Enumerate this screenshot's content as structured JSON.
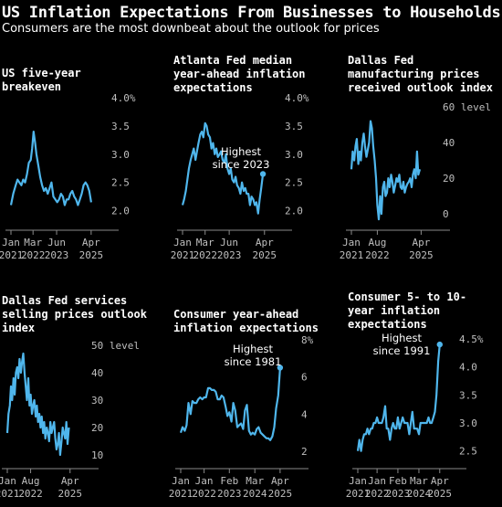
{
  "header": {
    "title": "US Inflation Expectations From Businesses to Households",
    "subtitle": "Consumers are the most downbeat about the outlook for prices"
  },
  "colors": {
    "line": "#4fb6ec",
    "background": "#000000",
    "axis": "#8a8a8a",
    "text": "#ffffff"
  },
  "chart_data": [
    {
      "type": "line",
      "title_lines": [
        "US five-year",
        "breakeven"
      ],
      "unit": "%",
      "ylim": [
        1.8,
        4.0
      ],
      "yticks": [
        2.0,
        2.5,
        3.0,
        3.5,
        4.0
      ],
      "ytick_labels": [
        "2.0",
        "2.5",
        "3.0",
        "3.5",
        "4.0%"
      ],
      "xlim": [
        2021.0,
        2025.45
      ],
      "xticks": [
        {
          "x": 2021.0,
          "month": "Jan",
          "year": "2021"
        },
        {
          "x": 2022.17,
          "month": "Mar",
          "year": "2022"
        },
        {
          "x": 2023.42,
          "month": "Jun",
          "year": "2023"
        },
        {
          "x": 2025.25,
          "month": "Apr",
          "year": "2025"
        }
      ],
      "series": [
        {
          "x": [
            2021.0,
            2021.12,
            2021.25,
            2021.35,
            2021.45,
            2021.55,
            2021.65,
            2021.75,
            2021.85,
            2021.95,
            2022.05,
            2022.12,
            2022.2,
            2022.28,
            2022.35,
            2022.45,
            2022.55,
            2022.65,
            2022.75,
            2022.85,
            2022.95,
            2023.05,
            2023.15,
            2023.25,
            2023.35,
            2023.45,
            2023.55,
            2023.65,
            2023.75,
            2023.85,
            2023.95,
            2024.05,
            2024.15,
            2024.25,
            2024.35,
            2024.45,
            2024.55,
            2024.65,
            2024.75,
            2024.85,
            2024.95,
            2025.05,
            2025.15,
            2025.25
          ],
          "y": [
            2.1,
            2.3,
            2.45,
            2.55,
            2.5,
            2.45,
            2.55,
            2.5,
            2.65,
            2.85,
            2.9,
            3.1,
            3.4,
            3.2,
            3.0,
            2.8,
            2.6,
            2.45,
            2.35,
            2.4,
            2.3,
            2.4,
            2.5,
            2.25,
            2.2,
            2.15,
            2.2,
            2.3,
            2.25,
            2.1,
            2.2,
            2.2,
            2.3,
            2.35,
            2.25,
            2.2,
            2.1,
            2.2,
            2.3,
            2.45,
            2.5,
            2.45,
            2.35,
            2.15
          ]
        }
      ]
    },
    {
      "type": "line",
      "title_lines": [
        "Atlanta Fed median",
        "year-ahead inflation",
        "expectations"
      ],
      "unit": "%",
      "ylim": [
        1.8,
        4.0
      ],
      "yticks": [
        2.0,
        2.5,
        3.0,
        3.5,
        4.0
      ],
      "ytick_labels": [
        "2.0",
        "2.5",
        "3.0",
        "3.5",
        "4.0%"
      ],
      "xlim": [
        2021.0,
        2025.45
      ],
      "xticks": [
        {
          "x": 2021.0,
          "month": "Jan",
          "year": "2021"
        },
        {
          "x": 2022.17,
          "month": "Mar",
          "year": "2022"
        },
        {
          "x": 2023.42,
          "month": "Jun",
          "year": "2023"
        },
        {
          "x": 2025.25,
          "month": "Apr",
          "year": "2025"
        }
      ],
      "annotation": {
        "lines": [
          "Highest",
          "since 2023"
        ]
      },
      "series": [
        {
          "x": [
            2021.0,
            2021.08,
            2021.17,
            2021.25,
            2021.33,
            2021.42,
            2021.5,
            2021.58,
            2021.67,
            2021.75,
            2021.83,
            2021.92,
            2022.0,
            2022.08,
            2022.17,
            2022.25,
            2022.33,
            2022.42,
            2022.5,
            2022.58,
            2022.67,
            2022.75,
            2022.83,
            2022.92,
            2023.0,
            2023.08,
            2023.17,
            2023.25,
            2023.33,
            2023.42,
            2023.5,
            2023.58,
            2023.67,
            2023.75,
            2023.83,
            2023.92,
            2024.0,
            2024.08,
            2024.17,
            2024.25,
            2024.33,
            2024.42,
            2024.5,
            2024.58,
            2024.67,
            2024.75,
            2024.83,
            2024.92,
            2025.0,
            2025.08,
            2025.17
          ],
          "y": [
            2.1,
            2.2,
            2.35,
            2.55,
            2.75,
            2.9,
            3.0,
            3.1,
            2.9,
            3.05,
            3.2,
            3.35,
            3.4,
            3.3,
            3.55,
            3.5,
            3.35,
            3.3,
            3.1,
            3.2,
            3.0,
            3.1,
            2.95,
            3.0,
            3.05,
            2.9,
            2.85,
            3.0,
            2.75,
            2.65,
            2.75,
            2.55,
            2.5,
            2.6,
            2.45,
            2.4,
            2.3,
            2.5,
            2.35,
            2.4,
            2.3,
            2.3,
            2.1,
            2.25,
            2.2,
            2.1,
            2.15,
            1.95,
            2.2,
            2.4,
            2.65
          ]
        }
      ]
    },
    {
      "type": "line",
      "title_lines": [
        "Dallas Fed",
        "manufacturing prices",
        "received outlook index"
      ],
      "unit": "level",
      "ylim": [
        -5,
        62
      ],
      "yticks": [
        0,
        20,
        40,
        60
      ],
      "ytick_labels": [
        "0",
        "20",
        "40",
        "60 level"
      ],
      "xlim": [
        2021.0,
        2025.45
      ],
      "xticks": [
        {
          "x": 2021.0,
          "month": "Jan",
          "year": "2021"
        },
        {
          "x": 2022.58,
          "month": "Aug",
          "year": "2022"
        },
        {
          "x": 2025.25,
          "month": "Apr",
          "year": "2025"
        }
      ],
      "series": [
        {
          "x": [
            2021.0,
            2021.08,
            2021.17,
            2021.25,
            2021.33,
            2021.42,
            2021.5,
            2021.58,
            2021.67,
            2021.75,
            2021.83,
            2021.92,
            2022.0,
            2022.08,
            2022.17,
            2022.25,
            2022.33,
            2022.42,
            2022.5,
            2022.58,
            2022.67,
            2022.75,
            2022.83,
            2022.92,
            2023.0,
            2023.08,
            2023.17,
            2023.25,
            2023.33,
            2023.42,
            2023.5,
            2023.58,
            2023.67,
            2023.75,
            2023.83,
            2023.92,
            2024.0,
            2024.08,
            2024.17,
            2024.25,
            2024.33,
            2024.42,
            2024.5,
            2024.58,
            2024.67,
            2024.75,
            2024.83,
            2024.92,
            2025.0,
            2025.08,
            2025.17
          ],
          "y": [
            25,
            35,
            30,
            38,
            42,
            28,
            35,
            30,
            40,
            45,
            38,
            32,
            36,
            40,
            52,
            48,
            38,
            30,
            20,
            5,
            -3,
            10,
            0,
            15,
            18,
            10,
            12,
            20,
            15,
            22,
            18,
            12,
            16,
            20,
            18,
            22,
            15,
            14,
            18,
            12,
            15,
            17,
            18,
            20,
            15,
            22,
            25,
            20,
            35,
            22,
            25
          ]
        }
      ]
    },
    {
      "type": "line",
      "title_lines": [
        "Dallas Fed services",
        "selling prices outlook",
        "index"
      ],
      "unit": "level",
      "ylim": [
        7,
        51
      ],
      "yticks": [
        10,
        20,
        30,
        40,
        50
      ],
      "ytick_labels": [
        "10",
        "20",
        "30",
        "40",
        "50 level"
      ],
      "xlim": [
        2021.0,
        2025.45
      ],
      "xticks": [
        {
          "x": 2021.0,
          "month": "Jan",
          "year": "2021"
        },
        {
          "x": 2022.58,
          "month": "Aug",
          "year": "2022"
        },
        {
          "x": 2025.25,
          "month": "Apr",
          "year": "2025"
        }
      ],
      "series": [
        {
          "x": [
            2021.0,
            2021.08,
            2021.17,
            2021.25,
            2021.33,
            2021.42,
            2021.5,
            2021.58,
            2021.67,
            2021.75,
            2021.83,
            2021.92,
            2022.0,
            2022.08,
            2022.17,
            2022.25,
            2022.33,
            2022.42,
            2022.5,
            2022.58,
            2022.67,
            2022.75,
            2022.83,
            2022.92,
            2023.0,
            2023.08,
            2023.17,
            2023.25,
            2023.33,
            2023.42,
            2023.5,
            2023.58,
            2023.67,
            2023.75,
            2023.83,
            2023.92,
            2024.0,
            2024.08,
            2024.17,
            2024.25,
            2024.33,
            2024.42,
            2024.5,
            2024.58,
            2024.67,
            2024.75,
            2024.83,
            2024.92,
            2025.0,
            2025.08,
            2025.17
          ],
          "y": [
            18,
            25,
            28,
            35,
            30,
            38,
            32,
            40,
            42,
            38,
            45,
            40,
            44,
            47,
            40,
            35,
            30,
            38,
            28,
            32,
            25,
            28,
            30,
            24,
            28,
            22,
            25,
            20,
            24,
            18,
            22,
            16,
            20,
            18,
            15,
            22,
            18,
            20,
            22,
            16,
            12,
            14,
            18,
            10,
            15,
            20,
            18,
            16,
            22,
            14,
            20
          ]
        }
      ]
    },
    {
      "type": "line",
      "title_lines": [
        "Consumer year-ahead",
        "inflation expectations"
      ],
      "unit": "%",
      "ylim": [
        2.0,
        8.0
      ],
      "yticks": [
        2,
        4,
        6,
        8
      ],
      "ytick_labels": [
        "2",
        "4",
        "6",
        "8%"
      ],
      "xlim": [
        2021.0,
        2025.45
      ],
      "xticks": [
        {
          "x": 2021.0,
          "month": "Jan",
          "year": "2021"
        },
        {
          "x": 2022.0,
          "month": "Jan",
          "year": "2022"
        },
        {
          "x": 2023.08,
          "month": "Feb",
          "year": "2023"
        },
        {
          "x": 2024.17,
          "month": "Mar",
          "year": "2024"
        },
        {
          "x": 2025.25,
          "month": "Apr",
          "year": "2025"
        }
      ],
      "annotation": {
        "lines": [
          "Highest",
          "since 1981"
        ]
      },
      "series": [
        {
          "x": [
            2021.0,
            2021.08,
            2021.17,
            2021.25,
            2021.33,
            2021.42,
            2021.5,
            2021.58,
            2021.67,
            2021.75,
            2021.83,
            2021.92,
            2022.0,
            2022.08,
            2022.17,
            2022.25,
            2022.33,
            2022.42,
            2022.5,
            2022.58,
            2022.67,
            2022.75,
            2022.83,
            2022.92,
            2023.0,
            2023.08,
            2023.17,
            2023.25,
            2023.33,
            2023.42,
            2023.5,
            2023.58,
            2023.67,
            2023.75,
            2023.83,
            2023.92,
            2024.0,
            2024.08,
            2024.17,
            2024.25,
            2024.33,
            2024.42,
            2024.5,
            2024.58,
            2024.67,
            2024.75,
            2024.83,
            2024.92,
            2025.0,
            2025.08,
            2025.17,
            2025.25
          ],
          "y": [
            3.0,
            3.3,
            3.1,
            3.4,
            4.6,
            4.0,
            4.7,
            4.6,
            4.6,
            4.8,
            4.9,
            4.8,
            4.9,
            4.9,
            5.4,
            5.4,
            5.3,
            5.3,
            5.2,
            4.8,
            4.8,
            5.0,
            4.9,
            4.4,
            3.9,
            4.1,
            3.6,
            4.6,
            4.2,
            3.3,
            3.4,
            3.5,
            3.2,
            4.2,
            4.5,
            3.1,
            2.9,
            3.0,
            2.9,
            3.2,
            3.3,
            3.0,
            2.9,
            2.8,
            2.7,
            2.7,
            2.6,
            2.8,
            3.3,
            4.3,
            5.0,
            6.5
          ]
        }
      ]
    },
    {
      "type": "line",
      "title_lines": [
        "Consumer 5- to 10-",
        "year inflation",
        "expectations"
      ],
      "unit": "%",
      "ylim": [
        2.3,
        4.5
      ],
      "yticks": [
        2.5,
        3.0,
        3.5,
        4.0,
        4.5
      ],
      "ytick_labels": [
        "2.5",
        "3.0",
        "3.5",
        "4.0",
        "4.5%"
      ],
      "xlim": [
        2021.0,
        2025.45
      ],
      "xticks": [
        {
          "x": 2021.0,
          "month": "Jan",
          "year": "2021"
        },
        {
          "x": 2022.0,
          "month": "Jan",
          "year": "2022"
        },
        {
          "x": 2023.08,
          "month": "Feb",
          "year": "2023"
        },
        {
          "x": 2024.17,
          "month": "Mar",
          "year": "2024"
        },
        {
          "x": 2025.25,
          "month": "Apr",
          "year": "2025"
        }
      ],
      "annotation": {
        "lines": [
          "Highest",
          "since 1991"
        ]
      },
      "series": [
        {
          "x": [
            2021.0,
            2021.08,
            2021.17,
            2021.25,
            2021.33,
            2021.42,
            2021.5,
            2021.58,
            2021.67,
            2021.75,
            2021.83,
            2021.92,
            2022.0,
            2022.08,
            2022.17,
            2022.25,
            2022.33,
            2022.42,
            2022.5,
            2022.58,
            2022.67,
            2022.75,
            2022.83,
            2022.92,
            2023.0,
            2023.08,
            2023.17,
            2023.25,
            2023.33,
            2023.42,
            2023.5,
            2023.58,
            2023.67,
            2023.75,
            2023.83,
            2023.92,
            2024.0,
            2024.08,
            2024.17,
            2024.25,
            2024.33,
            2024.42,
            2024.5,
            2024.58,
            2024.67,
            2024.75,
            2024.83,
            2024.92,
            2025.0,
            2025.08,
            2025.17,
            2025.25
          ],
          "y": [
            2.5,
            2.7,
            2.5,
            2.7,
            2.8,
            2.8,
            2.9,
            2.8,
            2.9,
            2.9,
            3.0,
            3.0,
            3.1,
            3.0,
            3.0,
            3.0,
            3.1,
            3.3,
            2.9,
            2.9,
            2.7,
            2.9,
            3.0,
            2.9,
            2.9,
            3.1,
            2.9,
            3.0,
            3.1,
            3.0,
            3.0,
            3.0,
            2.8,
            3.0,
            3.2,
            2.9,
            2.9,
            2.9,
            2.8,
            3.0,
            3.0,
            3.0,
            3.0,
            3.0,
            3.1,
            3.0,
            3.0,
            3.1,
            3.2,
            3.5,
            4.1,
            4.4
          ]
        }
      ]
    }
  ]
}
